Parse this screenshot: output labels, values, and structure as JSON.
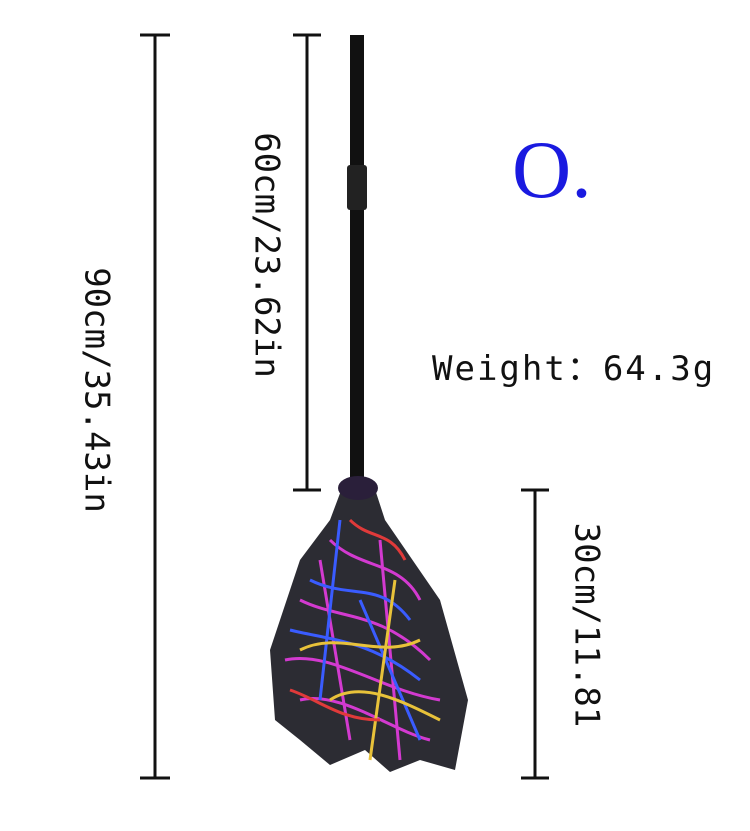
{
  "dimensions": [
    "90cm/35.43in",
    "60cm/23.62in",
    "30cm/11.81"
  ],
  "badge": "O.",
  "weight": "Weight：64.3g"
}
